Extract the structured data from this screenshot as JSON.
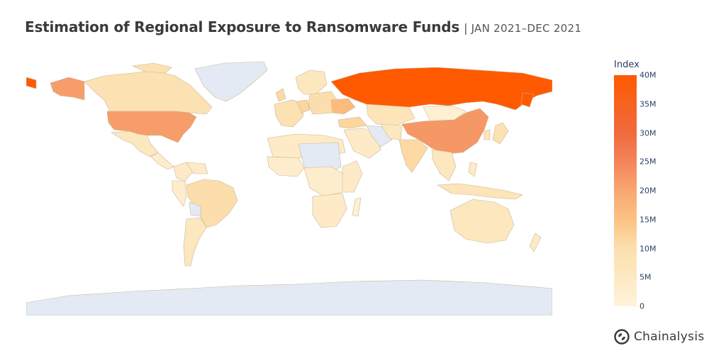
{
  "title": {
    "main": "Estimation of Regional Exposure to Ransomware Funds",
    "separator": "|",
    "period": "JAN 2021–DEC 2021"
  },
  "legend": {
    "title": "Index",
    "ticks": [
      "40M",
      "35M",
      "30M",
      "25M",
      "20M",
      "15M",
      "10M",
      "5M",
      "0"
    ],
    "tick_values": [
      40,
      35,
      30,
      25,
      20,
      15,
      10,
      5,
      0
    ],
    "unit": "M",
    "colorscale": [
      "#fff3d9",
      "#fcdfae",
      "#fcc383",
      "#f8a770",
      "#f4845a",
      "#f06a3d",
      "#ff5a00"
    ]
  },
  "map_data": {
    "no_data_color": "#e3eaf4",
    "border_color": "#c8b89a",
    "regions": [
      {
        "name": "Russia",
        "value_millions": 40
      },
      {
        "name": "China",
        "value_millions": 23
      },
      {
        "name": "United States",
        "value_millions": 22
      },
      {
        "name": "Alaska (US)",
        "value_millions": 22
      },
      {
        "name": "Ukraine",
        "value_millions": 15
      },
      {
        "name": "Canada",
        "value_millions": 6
      },
      {
        "name": "Brazil",
        "value_millions": 7
      },
      {
        "name": "India",
        "value_millions": 8
      },
      {
        "name": "Germany",
        "value_millions": 9
      },
      {
        "name": "United Kingdom",
        "value_millions": 8
      },
      {
        "name": "Turkey",
        "value_millions": 9
      },
      {
        "name": "Kazakhstan",
        "value_millions": 5
      },
      {
        "name": "Australia",
        "value_millions": 4
      },
      {
        "name": "Mexico",
        "value_millions": 4
      },
      {
        "name": "Argentina",
        "value_millions": 4
      },
      {
        "name": "Indonesia",
        "value_millions": 5
      },
      {
        "name": "South Africa",
        "value_millions": 3
      },
      {
        "name": "Mongolia",
        "value_millions": 1
      }
    ]
  },
  "logo": {
    "brand": "Chainalysis",
    "icon": "chainalysis-logo-icon"
  }
}
